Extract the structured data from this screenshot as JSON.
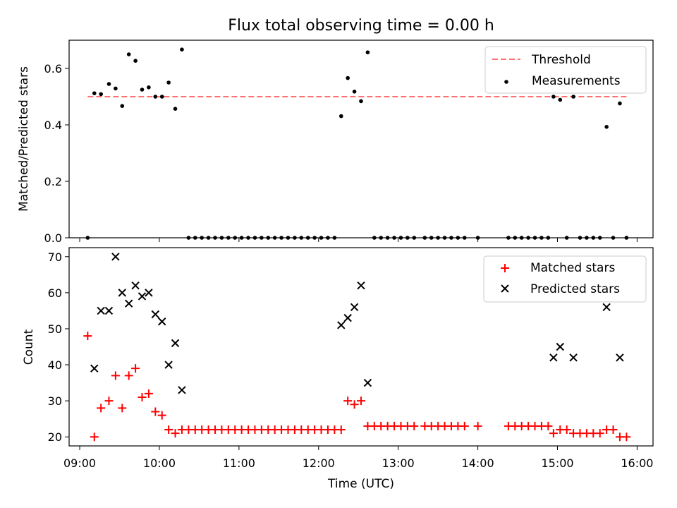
{
  "chart_data": [
    {
      "type": "scatter",
      "title": "Flux total observing time = 0.00 h",
      "ylabel": "Matched/Predicted stars",
      "ylim": [
        0.0,
        0.7
      ],
      "yticks": [
        "0.0",
        "0.2",
        "0.4",
        "0.6"
      ],
      "xlim": [
        "08:52",
        "16:12"
      ],
      "legend_position": "upper right",
      "threshold": {
        "label": "Threshold",
        "value": 0.5,
        "x_start": "09:06",
        "x_end": "15:54",
        "color": "#ff7070"
      },
      "series": [
        {
          "name": "Measurements",
          "color": "#000000",
          "points": [
            [
              "09:06",
              0.0
            ],
            [
              "09:11",
              0.512
            ],
            [
              "09:16",
              0.509
            ],
            [
              "09:22",
              0.545
            ],
            [
              "09:27",
              0.529
            ],
            [
              "09:32",
              0.467
            ],
            [
              "09:37",
              0.65
            ],
            [
              "09:42",
              0.627
            ],
            [
              "09:47",
              0.525
            ],
            [
              "09:52",
              0.533
            ],
            [
              "09:57",
              0.5
            ],
            [
              "10:02",
              0.5
            ],
            [
              "10:07",
              0.55
            ],
            [
              "10:12",
              0.457
            ],
            [
              "10:17",
              0.667
            ],
            [
              "10:22",
              0.0
            ],
            [
              "10:27",
              0.0
            ],
            [
              "10:32",
              0.0
            ],
            [
              "10:37",
              0.0
            ],
            [
              "10:42",
              0.0
            ],
            [
              "10:47",
              0.0
            ],
            [
              "10:52",
              0.0
            ],
            [
              "10:57",
              0.0
            ],
            [
              "11:02",
              0.0
            ],
            [
              "11:07",
              0.0
            ],
            [
              "11:12",
              0.0
            ],
            [
              "11:17",
              0.0
            ],
            [
              "11:22",
              0.0
            ],
            [
              "11:27",
              0.0
            ],
            [
              "11:32",
              0.0
            ],
            [
              "11:37",
              0.0
            ],
            [
              "11:42",
              0.0
            ],
            [
              "11:47",
              0.0
            ],
            [
              "11:52",
              0.0
            ],
            [
              "11:57",
              0.0
            ],
            [
              "12:02",
              0.0
            ],
            [
              "12:07",
              0.0
            ],
            [
              "12:12",
              0.0
            ],
            [
              "12:17",
              0.431
            ],
            [
              "12:22",
              0.566
            ],
            [
              "12:27",
              0.518
            ],
            [
              "12:32",
              0.484
            ],
            [
              "12:37",
              0.657
            ],
            [
              "12:42",
              0.0
            ],
            [
              "12:47",
              0.0
            ],
            [
              "12:52",
              0.0
            ],
            [
              "12:57",
              0.0
            ],
            [
              "13:02",
              0.0
            ],
            [
              "13:07",
              0.0
            ],
            [
              "13:12",
              0.0
            ],
            [
              "13:20",
              0.0
            ],
            [
              "13:25",
              0.0
            ],
            [
              "13:30",
              0.0
            ],
            [
              "13:35",
              0.0
            ],
            [
              "13:40",
              0.0
            ],
            [
              "13:45",
              0.0
            ],
            [
              "13:50",
              0.0
            ],
            [
              "14:00",
              0.0
            ],
            [
              "14:23",
              0.0
            ],
            [
              "14:28",
              0.0
            ],
            [
              "14:33",
              0.0
            ],
            [
              "14:38",
              0.0
            ],
            [
              "14:43",
              0.0
            ],
            [
              "14:48",
              0.0
            ],
            [
              "14:53",
              0.0
            ],
            [
              "14:57",
              0.5
            ],
            [
              "15:02",
              0.489
            ],
            [
              "15:07",
              0.0
            ],
            [
              "15:12",
              0.5
            ],
            [
              "15:17",
              0.0
            ],
            [
              "15:22",
              0.0
            ],
            [
              "15:27",
              0.0
            ],
            [
              "15:32",
              0.0
            ],
            [
              "15:37",
              0.393
            ],
            [
              "15:42",
              0.0
            ],
            [
              "15:47",
              0.476
            ],
            [
              "15:52",
              0.0
            ]
          ]
        }
      ]
    },
    {
      "type": "scatter",
      "xlabel": "Time (UTC)",
      "ylabel": "Count",
      "ylim": [
        17.5,
        72.5
      ],
      "yticks": [
        "20",
        "30",
        "40",
        "50",
        "60",
        "70"
      ],
      "xlim": [
        "08:52",
        "16:12"
      ],
      "xticks": [
        "09:00",
        "10:00",
        "11:00",
        "12:00",
        "13:00",
        "14:00",
        "15:00",
        "16:00"
      ],
      "legend_position": "upper right",
      "series": [
        {
          "name": "Matched stars",
          "marker": "plus",
          "color": "#ff0000",
          "points": [
            [
              "09:06",
              48
            ],
            [
              "09:11",
              20
            ],
            [
              "09:16",
              28
            ],
            [
              "09:22",
              30
            ],
            [
              "09:27",
              37
            ],
            [
              "09:32",
              28
            ],
            [
              "09:37",
              37
            ],
            [
              "09:42",
              39
            ],
            [
              "09:47",
              31
            ],
            [
              "09:52",
              32
            ],
            [
              "09:57",
              27
            ],
            [
              "10:02",
              26
            ],
            [
              "10:07",
              22
            ],
            [
              "10:12",
              21
            ],
            [
              "10:17",
              22
            ],
            [
              "10:22",
              22
            ],
            [
              "10:27",
              22
            ],
            [
              "10:32",
              22
            ],
            [
              "10:37",
              22
            ],
            [
              "10:42",
              22
            ],
            [
              "10:47",
              22
            ],
            [
              "10:52",
              22
            ],
            [
              "10:57",
              22
            ],
            [
              "11:02",
              22
            ],
            [
              "11:07",
              22
            ],
            [
              "11:12",
              22
            ],
            [
              "11:17",
              22
            ],
            [
              "11:22",
              22
            ],
            [
              "11:27",
              22
            ],
            [
              "11:32",
              22
            ],
            [
              "11:37",
              22
            ],
            [
              "11:42",
              22
            ],
            [
              "11:47",
              22
            ],
            [
              "11:52",
              22
            ],
            [
              "11:57",
              22
            ],
            [
              "12:02",
              22
            ],
            [
              "12:07",
              22
            ],
            [
              "12:12",
              22
            ],
            [
              "12:17",
              22
            ],
            [
              "12:22",
              30
            ],
            [
              "12:27",
              29
            ],
            [
              "12:32",
              30
            ],
            [
              "12:37",
              23
            ],
            [
              "12:42",
              23
            ],
            [
              "12:47",
              23
            ],
            [
              "12:52",
              23
            ],
            [
              "12:57",
              23
            ],
            [
              "13:02",
              23
            ],
            [
              "13:07",
              23
            ],
            [
              "13:12",
              23
            ],
            [
              "13:20",
              23
            ],
            [
              "13:25",
              23
            ],
            [
              "13:30",
              23
            ],
            [
              "13:35",
              23
            ],
            [
              "13:40",
              23
            ],
            [
              "13:45",
              23
            ],
            [
              "13:50",
              23
            ],
            [
              "14:00",
              23
            ],
            [
              "14:23",
              23
            ],
            [
              "14:28",
              23
            ],
            [
              "14:33",
              23
            ],
            [
              "14:38",
              23
            ],
            [
              "14:43",
              23
            ],
            [
              "14:48",
              23
            ],
            [
              "14:53",
              23
            ],
            [
              "14:57",
              21
            ],
            [
              "15:02",
              22
            ],
            [
              "15:07",
              22
            ],
            [
              "15:12",
              21
            ],
            [
              "15:17",
              21
            ],
            [
              "15:22",
              21
            ],
            [
              "15:27",
              21
            ],
            [
              "15:32",
              21
            ],
            [
              "15:37",
              22
            ],
            [
              "15:42",
              22
            ],
            [
              "15:47",
              20
            ],
            [
              "15:52",
              20
            ]
          ]
        },
        {
          "name": "Predicted stars",
          "marker": "x",
          "color": "#000000",
          "points": [
            [
              "09:11",
              39
            ],
            [
              "09:16",
              55
            ],
            [
              "09:22",
              55
            ],
            [
              "09:27",
              70
            ],
            [
              "09:32",
              60
            ],
            [
              "09:37",
              57
            ],
            [
              "09:42",
              62
            ],
            [
              "09:47",
              59
            ],
            [
              "09:52",
              60
            ],
            [
              "09:57",
              54
            ],
            [
              "10:02",
              52
            ],
            [
              "10:07",
              40
            ],
            [
              "10:12",
              46
            ],
            [
              "10:17",
              33
            ],
            [
              "12:17",
              51
            ],
            [
              "12:22",
              53
            ],
            [
              "12:27",
              56
            ],
            [
              "12:32",
              62
            ],
            [
              "12:37",
              35
            ],
            [
              "14:57",
              42
            ],
            [
              "15:02",
              45
            ],
            [
              "15:12",
              42
            ],
            [
              "15:37",
              56
            ],
            [
              "15:47",
              42
            ]
          ]
        }
      ]
    }
  ]
}
